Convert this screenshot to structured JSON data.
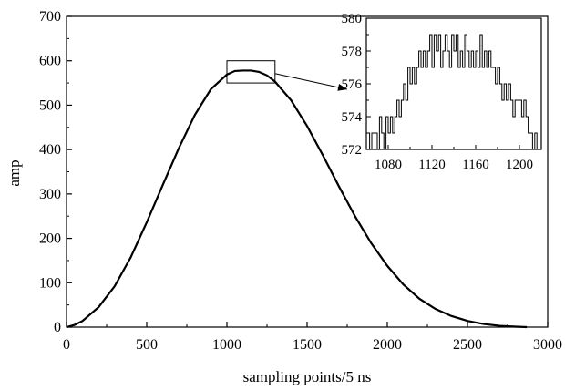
{
  "chart_data": [
    {
      "type": "line",
      "title": "",
      "xlabel": "sampling points/5 ns",
      "ylabel": "amp",
      "xlim": [
        0,
        3000
      ],
      "ylim": [
        0,
        700
      ],
      "xticks": [
        "0",
        "500",
        "1000",
        "1500",
        "2000",
        "2500",
        "3000"
      ],
      "yticks": [
        "0",
        "100",
        "200",
        "300",
        "400",
        "500",
        "600",
        "700"
      ],
      "grid": false,
      "legend": "none",
      "series": [
        {
          "x": [
            0,
            50,
            100,
            200,
            300,
            400,
            500,
            600,
            700,
            800,
            900,
            1000,
            1050,
            1100,
            1130,
            1150,
            1200,
            1250,
            1300,
            1400,
            1500,
            1600,
            1700,
            1800,
            1900,
            2000,
            2100,
            2200,
            2300,
            2400,
            2500,
            2600,
            2700,
            2800,
            2870
          ],
          "y": [
            0,
            5,
            14,
            45,
            92,
            157,
            236,
            320,
            403,
            478,
            536,
            569,
            577,
            578,
            578,
            578,
            575,
            567,
            553,
            511,
            453,
            386,
            316,
            249,
            189,
            138,
            96,
            64,
            41,
            25,
            14,
            7,
            3,
            1,
            0
          ]
        }
      ],
      "highlight_box": {
        "x": [
          1000,
          1300
        ],
        "y": [
          550,
          600
        ]
      }
    },
    {
      "type": "line",
      "title": "",
      "xlabel": "",
      "ylabel": "",
      "xlim": [
        1060,
        1220
      ],
      "ylim": [
        572,
        580
      ],
      "xticks": [
        "1080",
        "1120",
        "1160",
        "1200"
      ],
      "yticks": [
        "572",
        "574",
        "576",
        "578",
        "580"
      ],
      "grid": false,
      "legend": "none",
      "series": [
        {
          "x": [
            1060,
            1063,
            1065,
            1068,
            1070,
            1072,
            1074,
            1076,
            1078,
            1080,
            1082,
            1084,
            1086,
            1088,
            1090,
            1092,
            1094,
            1096,
            1098,
            1100,
            1102,
            1104,
            1106,
            1108,
            1110,
            1112,
            1114,
            1116,
            1118,
            1120,
            1122,
            1124,
            1126,
            1128,
            1130,
            1132,
            1134,
            1136,
            1138,
            1140,
            1142,
            1144,
            1146,
            1148,
            1150,
            1152,
            1154,
            1156,
            1158,
            1160,
            1162,
            1164,
            1166,
            1168,
            1170,
            1172,
            1174,
            1176,
            1178,
            1180,
            1182,
            1184,
            1186,
            1188,
            1190,
            1192,
            1194,
            1196,
            1198,
            1200,
            1202,
            1204,
            1206,
            1208,
            1210,
            1212,
            1214,
            1216
          ],
          "y": [
            573,
            572,
            573,
            573,
            572,
            574,
            573,
            572,
            574,
            573,
            574,
            573,
            574,
            575,
            574,
            575,
            576,
            575,
            577,
            576,
            577,
            576,
            577,
            578,
            577,
            578,
            577,
            578,
            579,
            577,
            579,
            578,
            579,
            577,
            578,
            579,
            578,
            577,
            579,
            578,
            579,
            577,
            578,
            577,
            579,
            578,
            577,
            578,
            577,
            578,
            577,
            579,
            577,
            578,
            577,
            578,
            577,
            577,
            576,
            577,
            576,
            575,
            576,
            575,
            576,
            575,
            574,
            575,
            575,
            575,
            574,
            575,
            574,
            573,
            573,
            572,
            573,
            572
          ]
        }
      ]
    }
  ]
}
